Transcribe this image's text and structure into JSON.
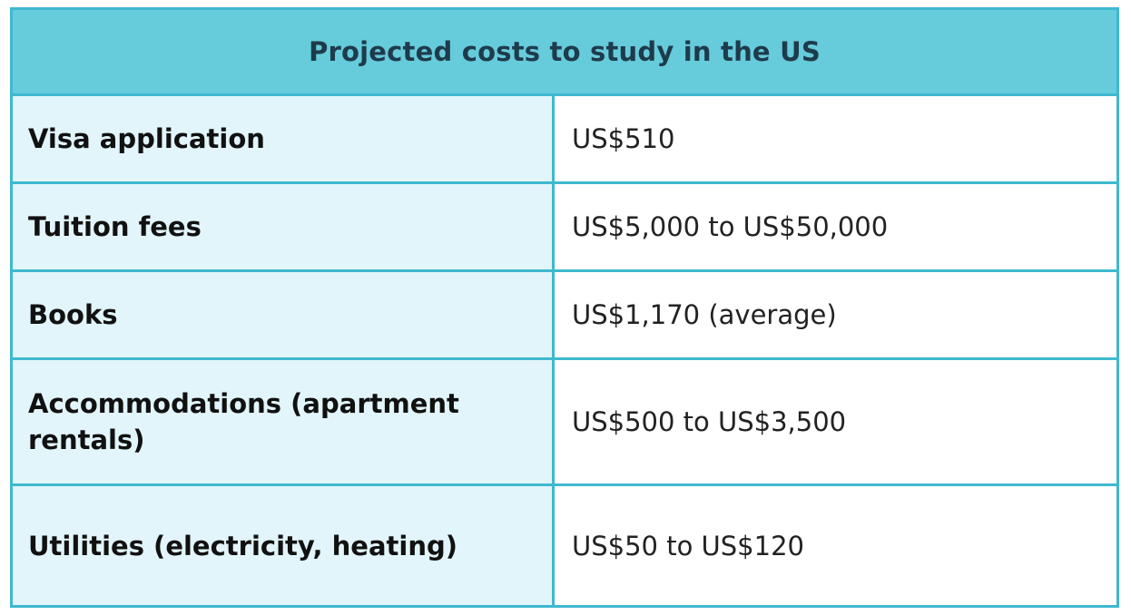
{
  "table": {
    "title": "Projected costs to study in the US",
    "rows": [
      {
        "label": "Visa application",
        "value": "US$510"
      },
      {
        "label": "Tuition fees",
        "value": "US$5,000 to US$50,000"
      },
      {
        "label": "Books",
        "value": "US$1,170 (average)"
      },
      {
        "label": "Accommodations (apartment rentals)",
        "value": "US$500 to US$3,500"
      },
      {
        "label": "Utilities (electricity, heating)",
        "value": "US$50 to US$120"
      }
    ]
  },
  "colors": {
    "border": "#3fb8d0",
    "header_bg": "#66cbdb",
    "label_bg": "#e2f5fa",
    "title_text": "#1e3b4b"
  }
}
